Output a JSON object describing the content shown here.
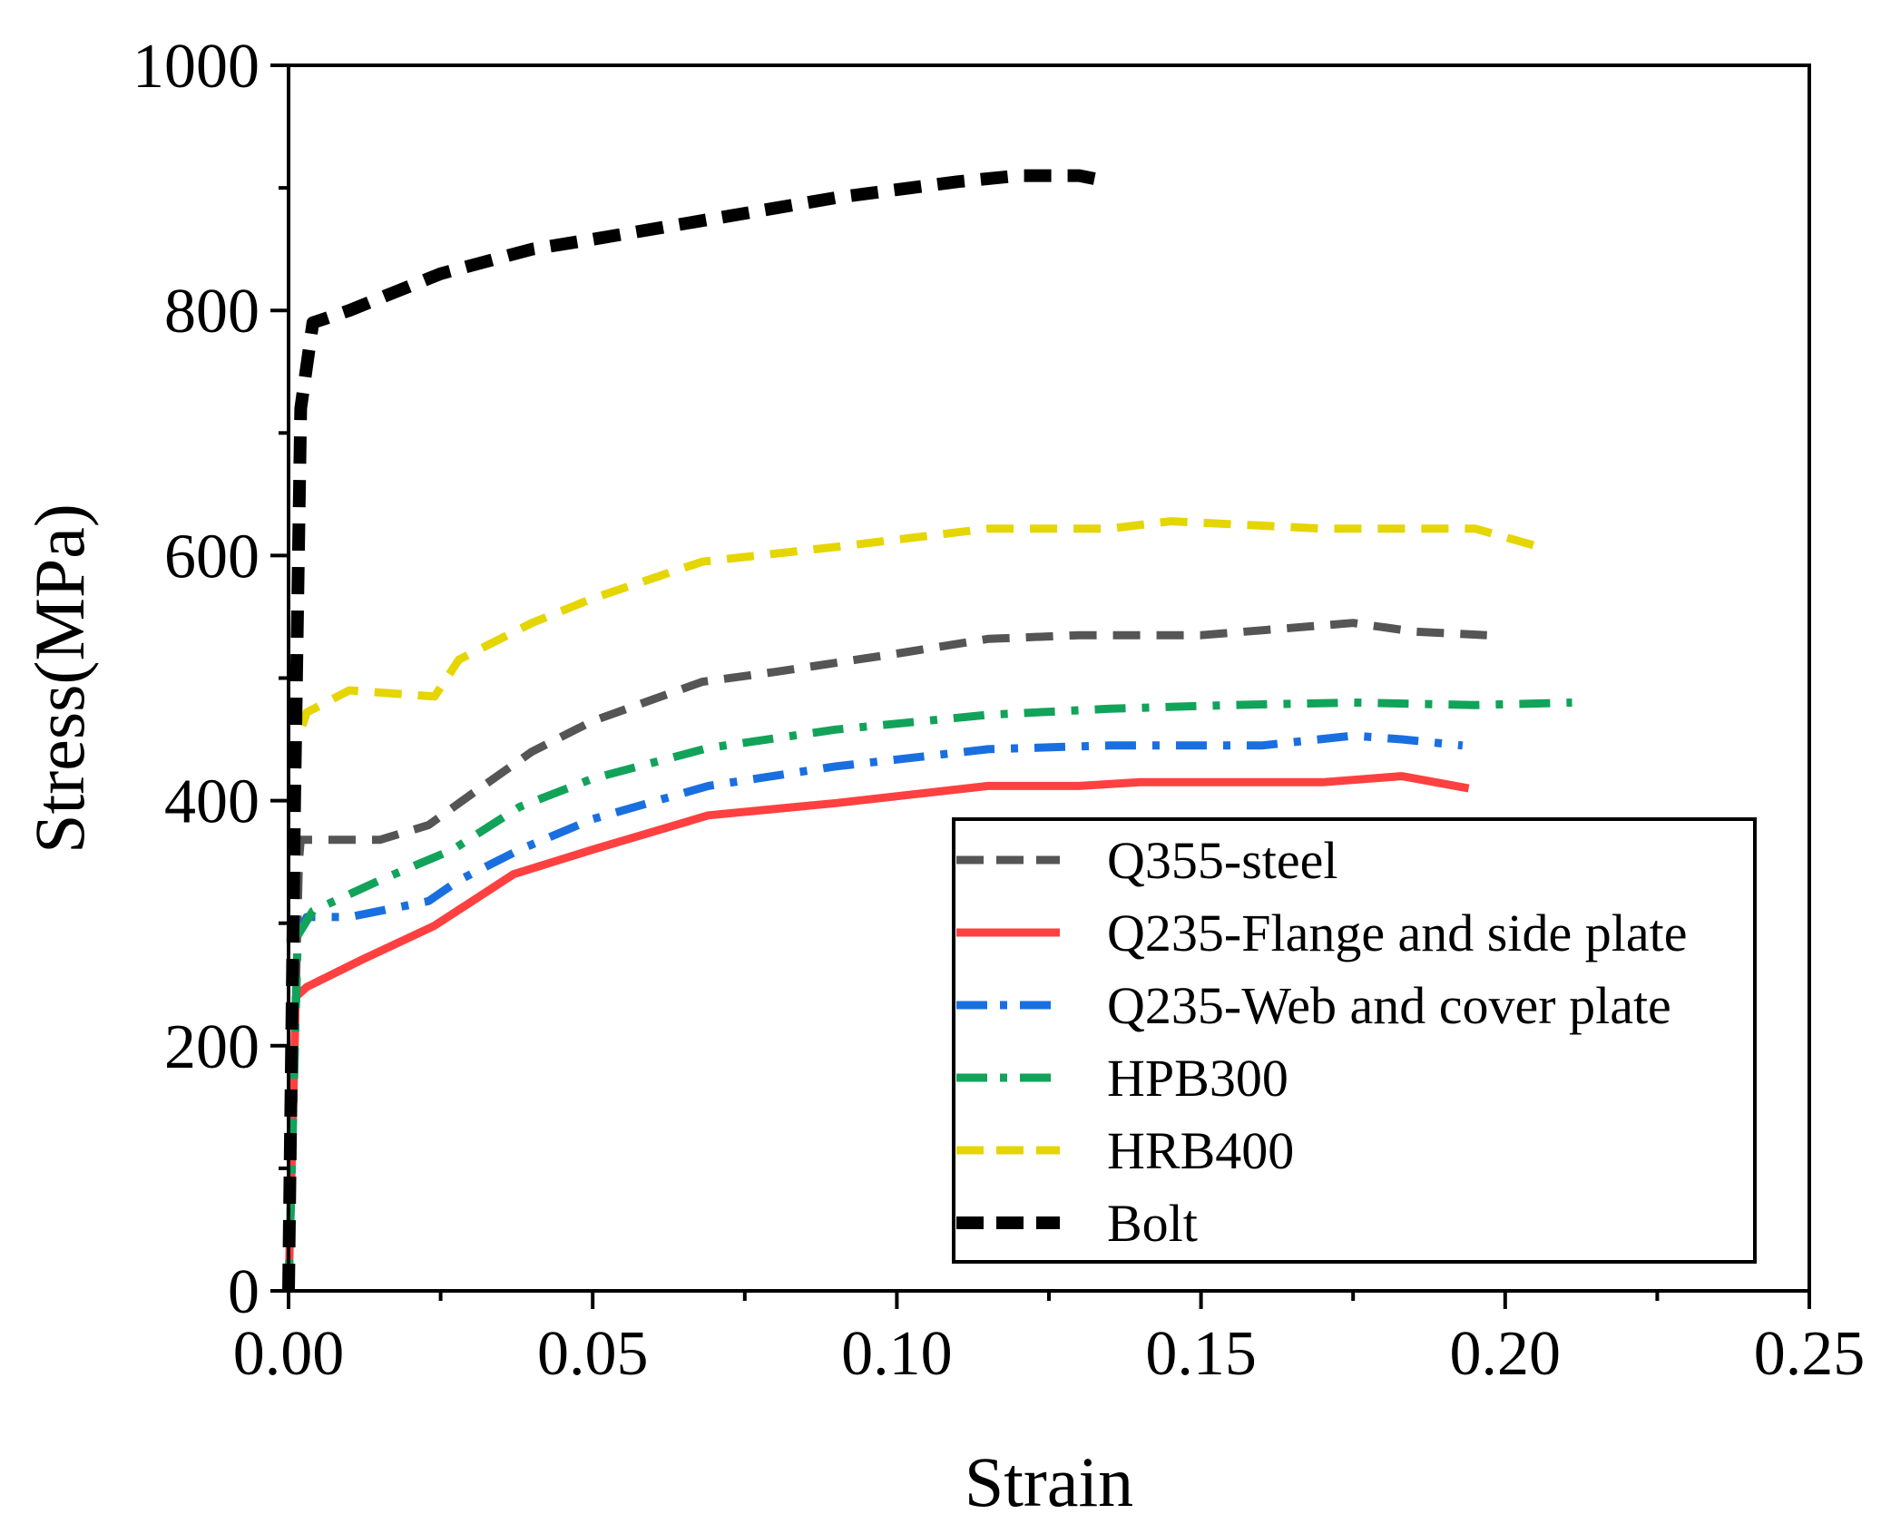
{
  "chart_data": {
    "type": "line",
    "title": "",
    "xlabel": "Strain",
    "ylabel": "Stress(MPa)",
    "xlim": [
      0,
      0.25
    ],
    "ylim": [
      0,
      1000
    ],
    "x_ticks": [
      "0.00",
      "0.05",
      "0.10",
      "0.15",
      "0.20",
      "0.25"
    ],
    "y_ticks": [
      "0",
      "200",
      "400",
      "600",
      "800",
      "1000"
    ],
    "legend_position": "bottom-right",
    "series": [
      {
        "name": "Q355-steel",
        "color": "#555555",
        "style": "dash",
        "x": [
          0,
          0.0017,
          0.002,
          0.005,
          0.015,
          0.023,
          0.03,
          0.04,
          0.05,
          0.068,
          0.08,
          0.1,
          0.115,
          0.13,
          0.15,
          0.175,
          0.185,
          0.197
        ],
        "y": [
          0,
          350,
          368,
          368,
          368,
          380,
          405,
          440,
          465,
          497,
          505,
          520,
          532,
          535,
          535,
          545,
          538,
          535
        ]
      },
      {
        "name": "Q235-Flange and side plate",
        "color": "#ff4040",
        "style": "solid",
        "x": [
          0,
          0.0012,
          0.003,
          0.012,
          0.024,
          0.037,
          0.05,
          0.069,
          0.09,
          0.115,
          0.13,
          0.14,
          0.17,
          0.183,
          0.194
        ],
        "y": [
          0,
          240,
          248,
          270,
          298,
          340,
          360,
          388,
          398,
          412,
          412,
          415,
          415,
          420,
          410
        ]
      },
      {
        "name": "Q235-Web and cover plate",
        "color": "#1a6fe0",
        "style": "dashdot",
        "x": [
          0,
          0.0015,
          0.003,
          0.01,
          0.023,
          0.028,
          0.038,
          0.05,
          0.069,
          0.09,
          0.115,
          0.135,
          0.16,
          0.175,
          0.183,
          0.193
        ],
        "y": [
          0,
          290,
          305,
          305,
          318,
          335,
          360,
          385,
          412,
          428,
          442,
          445,
          445,
          453,
          450,
          445
        ]
      },
      {
        "name": "HPB300",
        "color": "#12a35a",
        "style": "dashdot",
        "x": [
          0,
          0.0015,
          0.004,
          0.015,
          0.027,
          0.038,
          0.05,
          0.069,
          0.09,
          0.115,
          0.135,
          0.155,
          0.175,
          0.195,
          0.211
        ],
        "y": [
          0,
          290,
          310,
          335,
          360,
          395,
          418,
          443,
          458,
          470,
          475,
          478,
          480,
          478,
          480
        ]
      },
      {
        "name": "HRB400",
        "color": "#e5d500",
        "style": "dash",
        "x": [
          0,
          0.0015,
          0.003,
          0.01,
          0.024,
          0.028,
          0.04,
          0.05,
          0.068,
          0.09,
          0.115,
          0.135,
          0.145,
          0.17,
          0.183,
          0.195,
          0.205
        ],
        "y": [
          0,
          450,
          472,
          490,
          485,
          515,
          545,
          565,
          595,
          607,
          622,
          622,
          628,
          622,
          622,
          622,
          608
        ]
      },
      {
        "name": "Bolt",
        "color": "#000000",
        "style": "dash",
        "x": [
          0,
          0.001,
          0.002,
          0.004,
          0.01,
          0.025,
          0.04,
          0.05,
          0.07,
          0.09,
          0.11,
          0.12,
          0.13,
          0.135
        ],
        "y": [
          0,
          400,
          720,
          790,
          800,
          830,
          850,
          858,
          875,
          892,
          905,
          910,
          910,
          905
        ]
      }
    ]
  }
}
